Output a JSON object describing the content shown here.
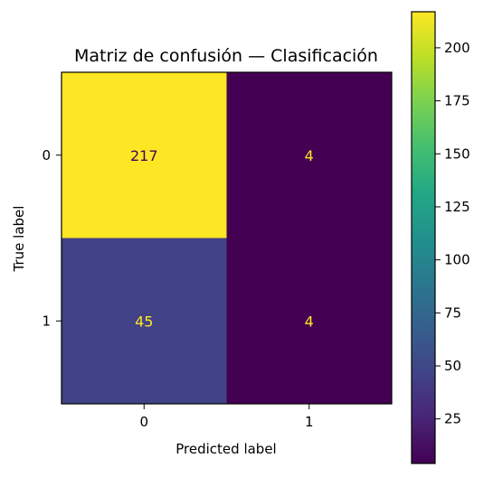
{
  "chart_data": {
    "type": "heatmap",
    "title": "Matriz de confusión — Clasificación",
    "xlabel": "Predicted label",
    "ylabel": "True label",
    "x_categories": [
      "0",
      "1"
    ],
    "y_categories": [
      "0",
      "1"
    ],
    "values": [
      [
        217,
        4
      ],
      [
        45,
        4
      ]
    ],
    "colormap": "viridis",
    "colorbar": {
      "range": [
        4,
        217
      ],
      "ticks": [
        "25",
        "50",
        "75",
        "100",
        "125",
        "150",
        "175",
        "200"
      ]
    },
    "grid": false
  }
}
